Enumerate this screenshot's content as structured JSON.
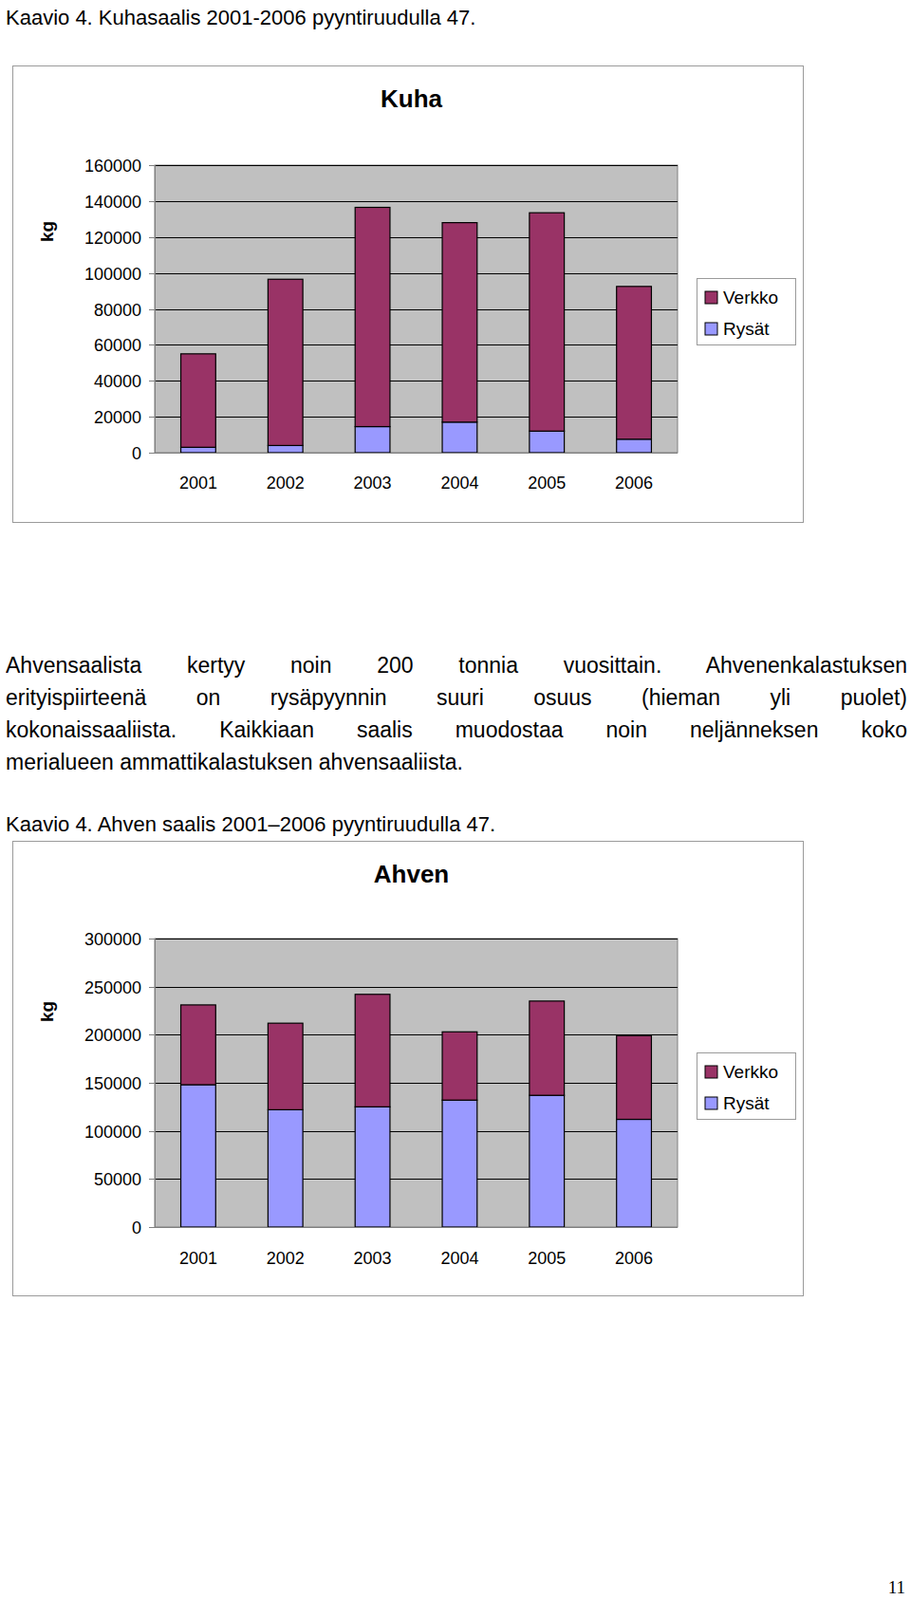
{
  "chart_data": [
    {
      "type": "bar",
      "title": "Kuha",
      "y_label": "kg",
      "stacked": true,
      "grid": true,
      "legend": "right",
      "categories": [
        "2001",
        "2002",
        "2003",
        "2004",
        "2005",
        "2006"
      ],
      "series": [
        {
          "name": "Rysät",
          "color": "#9999ff",
          "values": [
            3000,
            4000,
            14500,
            17000,
            12000,
            7500
          ]
        },
        {
          "name": "Verkko",
          "color": "#993366",
          "values": [
            52000,
            92500,
            122000,
            111000,
            121500,
            85000
          ]
        }
      ],
      "ylim": [
        0,
        160000
      ],
      "yticks": [
        0,
        20000,
        40000,
        60000,
        80000,
        100000,
        120000,
        140000,
        160000
      ]
    },
    {
      "type": "bar",
      "title": "Ahven",
      "y_label": "kg",
      "stacked": true,
      "grid": true,
      "legend": "right",
      "categories": [
        "2001",
        "2002",
        "2003",
        "2004",
        "2005",
        "2006"
      ],
      "series": [
        {
          "name": "Rysät",
          "color": "#9999ff",
          "values": [
            148000,
            122000,
            125000,
            132000,
            137000,
            112000
          ]
        },
        {
          "name": "Verkko",
          "color": "#993366",
          "values": [
            83000,
            90000,
            117000,
            71000,
            98000,
            87000
          ]
        }
      ],
      "ylim": [
        0,
        300000
      ],
      "yticks": [
        0,
        50000,
        100000,
        150000,
        200000,
        250000,
        300000
      ]
    }
  ],
  "page": {
    "captions": [
      "Kaavio 4. Kuhasaalis 2001-2006 pyyntiruudulla 47.",
      "Kaavio 4. Ahven saalis 2001–2006 pyyntiruudulla 47."
    ],
    "paragraph_lines": [
      "Ahvensaalista kertyy noin 200 tonnia vuosittain. Ahvenenkalastuksen",
      "erityispiirteenä on rysäpyynnin suuri osuus (hieman yli puolet)",
      "kokonaissaaliista. Kaikkiaan saalis muodostaa noin neljänneksen koko",
      "merialueen ammattikalastuksen ahvensaaliista."
    ],
    "page_number": "11"
  }
}
